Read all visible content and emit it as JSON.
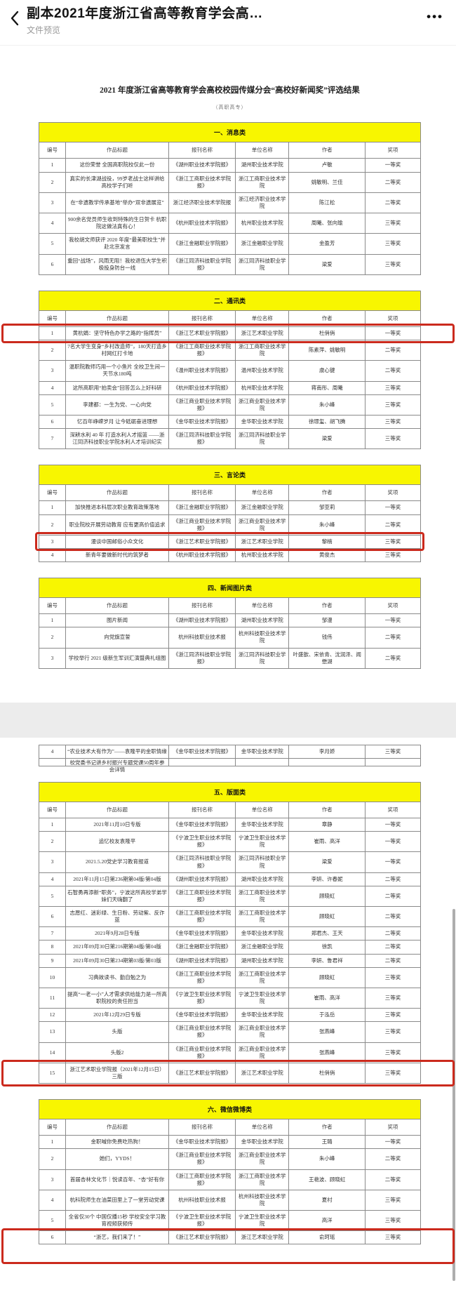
{
  "app_bar": {
    "title": "副本2021年度浙江省高等教育学会高…",
    "subtitle": "文件预览",
    "icons": {
      "back": "‹",
      "more": "•••"
    }
  },
  "colors": {
    "banner_yellow": "#f8f600",
    "highlight_red": "#cb2a1d",
    "table_border": "#8a8a8a"
  },
  "document": {
    "title": "2021 年度浙江省高等教育学会高校校园传媒分会“高校好新闻奖”评选结果",
    "subtitle": "（高职高专）",
    "columns": [
      "编号",
      "作品标题",
      "报刊名称",
      "单位名称",
      "作者",
      "奖项"
    ],
    "pages": [
      {
        "sections": [
          "msg",
          "comm",
          "opinion",
          "photo"
        ]
      },
      {
        "sections": [
          "photo_cont",
          "layout",
          "wechat"
        ]
      }
    ],
    "sections": [
      {
        "id": "msg",
        "banner": "一、消息类",
        "show_header": true,
        "rows": [
          {
            "no": "1",
            "title": "这份荣誉 全国高职院校仅此一份",
            "paper": "《湖州职业技术学院报》",
            "unit": "湖州职业技术学院",
            "author": "卢敏",
            "award": "一等奖"
          },
          {
            "no": "2",
            "title": "真实的长津湖战役，99岁老战士这样讲给高校学子们听",
            "paper": "《浙江工商职业技术学院报》",
            "unit": "浙江工商职业技术学院",
            "author": "姚敏明、兰佳",
            "award": "二等奖"
          },
          {
            "no": "3",
            "title": "在“非遗教学传承基地”举办“双非遗展览”",
            "paper": "浙江经济职业技术学院报",
            "unit": "浙江经济职业技术学院",
            "author": "陈江松",
            "award": "二等奖"
          },
          {
            "no": "4",
            "title": "900余名党员师生收到特殊的生日贺卡 杭职院这做法真有心！",
            "paper": "《杭州职业技术学院报》",
            "unit": "杭州职业技术学院",
            "author": "周曦、张向瑜",
            "award": "三等奖"
          },
          {
            "no": "5",
            "title": "我校胡文师获评 2020 年度“最美职校生”并赴北京发言",
            "paper": "《浙江金融职业学院报》",
            "unit": "浙江金融职业学院",
            "author": "金盈芳",
            "award": "三等奖"
          },
          {
            "no": "6",
            "title": "重回“战场”，风雨无阻！我校退伍大学生积极投身防台一线",
            "paper": "《浙江同济科技职业学院报》",
            "unit": "浙江同济科技职业学院",
            "author": "梁爱",
            "award": "三等奖"
          }
        ]
      },
      {
        "id": "comm",
        "banner": "二、通讯类",
        "show_header": true,
        "rows": [
          {
            "no": "1",
            "title": "黄杭娟：坚守特色办学之路的“指挥员”",
            "paper": "《浙江艺术职业学院报》",
            "unit": "浙江艺术职业学院",
            "author": "杜俏俏",
            "award": "一等奖",
            "highlight": "full"
          },
          {
            "no": "2",
            "title": "7名大学生变身“乡村改造师”，180天打造乡村网红打卡地",
            "paper": "《浙江工商职业技术学院报》",
            "unit": "浙江工商职业技术学院",
            "author": "陈素萍、姚敏明",
            "award": "二等奖"
          },
          {
            "no": "3",
            "title": "温职院教师巧用一个小鱼片 全校卫生间一天节水180吨",
            "paper": "《温州职业技术学院报》",
            "unit": "温州职业技术学院",
            "author": "虞心键",
            "award": "二等奖"
          },
          {
            "no": "4",
            "title": "这所高职用“拍卖会”回答怎么上好科研",
            "paper": "《杭州职业技术学院报》",
            "unit": "杭州职业技术学院",
            "author": "蒋南彤、周曦",
            "award": "三等奖"
          },
          {
            "no": "5",
            "title": "李建都：一生为党、一心向党",
            "paper": "《浙江商业职业技术学院报》",
            "unit": "浙江商业职业技术学院",
            "author": "朱小峰",
            "award": "三等奖"
          },
          {
            "no": "6",
            "title": "忆百年峥嵘岁月 让今砥砺奋进理想",
            "paper": "《金华职业技术学院报》",
            "unit": "金华职业技术学院",
            "author": "徐璟玺、胡飞腾",
            "award": "三等奖"
          },
          {
            "no": "7",
            "title": "深耕水利 40 年 打造水利人才摇篮 ——浙江同济科技职业学院水利人才培训纪实",
            "paper": "《浙江同济科技职业学院报》",
            "unit": "浙江同济科技职业学院",
            "author": "梁爱",
            "award": "三等奖"
          }
        ]
      },
      {
        "id": "opinion",
        "banner": "三、言论类",
        "show_header": true,
        "rows": [
          {
            "no": "1",
            "title": "加快推进本科层次职业教育政策落地",
            "paper": "《浙江金融职业学院报》",
            "unit": "浙江金融职业学院",
            "author": "邹亚莉",
            "award": "一等奖"
          },
          {
            "no": "2",
            "title": "职业院校开展劳动教育 应有更高价值追求",
            "paper": "《浙江商业职业技术学院报》",
            "unit": "浙江商业职业技术学院",
            "author": "朱小峰",
            "award": "二等奖"
          },
          {
            "no": "3",
            "title": "漫谈中国邮俗小众文化",
            "paper": "《浙江艺术职业学院报》",
            "unit": "浙江艺术职业学院",
            "author": "黎楠",
            "award": "三等奖",
            "highlight": "row"
          },
          {
            "no": "4",
            "title": "新青年要做新时代的筑梦者",
            "paper": "《杭州职业技术学院报》",
            "unit": "杭州职业技术学院",
            "author": "黄俊杰",
            "award": "三等奖"
          }
        ]
      },
      {
        "id": "photo",
        "banner": "四、新闻图片类",
        "show_header": true,
        "rows": [
          {
            "no": "1",
            "title": "图片新闻",
            "paper": "《湖州职业技术学院报》",
            "unit": "湖州职业技术学院",
            "author": "邹漫",
            "award": "一等奖"
          },
          {
            "no": "2",
            "title": "向党旗宣誓",
            "paper": "杭州科技职业技术报",
            "unit": "杭州科技职业技术学院",
            "author": "钱伟",
            "award": "二等奖"
          },
          {
            "no": "3",
            "title": "学校举行 2021 级新生军训汇演暨典礼组图",
            "paper": "《浙江同济科技职业学院报》",
            "unit": "浙江同济科技职业学院",
            "author": "叶盛歆、宋依青、沈润泽、闻懋湖",
            "award": "二等奖"
          }
        ]
      },
      {
        "id": "photo_cont",
        "banner": null,
        "show_header": false,
        "rows": [
          {
            "no": "4",
            "title": "“农业技术大有作为”——袁隆平的金职情缘",
            "paper": "《金华职业技术学院报》",
            "unit": "金华职业技术学院",
            "author": "李月娇",
            "award": "三等奖"
          },
          {
            "no": "",
            "title": "校党委书记讲乡村振兴专题党课50周年参会详情",
            "paper": "",
            "unit": "",
            "author": "",
            "award": "",
            "partial": true
          }
        ]
      },
      {
        "id": "layout",
        "banner": "五、版面类",
        "show_header": true,
        "rows": [
          {
            "no": "1",
            "title": "2021年11月10日专版",
            "paper": "《金华职业技术学院报》",
            "unit": "金华职业技术学院",
            "author": "章静",
            "award": "一等奖"
          },
          {
            "no": "2",
            "title": "追忆校友袁隆平",
            "paper": "《宁波卫生职业技术学院报》",
            "unit": "宁波卫生职业技术学院",
            "author": "崔雨、高洋",
            "award": "一等奖"
          },
          {
            "no": "3",
            "title": "2021.5.20党史学习教育报道",
            "paper": "《浙江同济科技职业学院报》",
            "unit": "浙江同济科技职业学院",
            "author": "梁爱",
            "award": "一等奖"
          },
          {
            "no": "4",
            "title": "2021年11月15日第236期第04版/第04版",
            "paper": "《湖州职业技术学院报》",
            "unit": "湖州职业技术学院",
            "author": "李妍、许春妮",
            "award": "二等奖"
          },
          {
            "no": "5",
            "title": "石智勇再添新“职务”，宁波这所高校学弟学妹们天嗨翻了",
            "paper": "《浙江工商职业技术学院报》",
            "unit": "浙江工商职业技术学院",
            "author": "顾晓虹",
            "award": "二等奖"
          },
          {
            "no": "6",
            "title": "志愿红、迷彩绿、生日粉、劳动紫、反诈蓝",
            "paper": "《浙江工商职业技术学院报》",
            "unit": "浙江工商职业技术学院",
            "author": "顾晓虹",
            "award": "二等奖"
          },
          {
            "no": "7",
            "title": "2021年9月28日专版",
            "paper": "《金华职业技术学院报》",
            "unit": "金华职业技术学院",
            "author": "郑君杰、王天",
            "award": "二等奖"
          },
          {
            "no": "8",
            "title": "2021年09月30日第216期第04版/第04版",
            "paper": "《浙江金融职业学院报》",
            "unit": "浙江金融职业学院",
            "author": "徐凯",
            "award": "二等奖"
          },
          {
            "no": "9",
            "title": "2021年09月30日第234期第03版/第03版",
            "paper": "《湖州职业技术学院报》",
            "unit": "湖州职业技术学院",
            "author": "李妍、鲁君祥",
            "award": "二等奖"
          },
          {
            "no": "10",
            "title": "习典故读书、勤自勉之为",
            "paper": "《浙江工商职业技术学院报》",
            "unit": "浙江工商职业技术学院",
            "author": "顾晓虹",
            "award": "三等奖"
          },
          {
            "no": "11",
            "title": "提高“一老一小”人才需求供给能力是一所高职院校的责任担当",
            "paper": "《宁波卫生职业技术学院报》",
            "unit": "宁波卫生职业技术学院",
            "author": "崔雨、高洋",
            "award": "三等奖"
          },
          {
            "no": "12",
            "title": "2021年12月29日专版",
            "paper": "《金华职业技术学院报》",
            "unit": "金华职业技术学院",
            "author": "于泓岳",
            "award": "三等奖"
          },
          {
            "no": "13",
            "title": "头版",
            "paper": "《浙江商业职业技术学院报》",
            "unit": "浙江商业职业技术学院",
            "author": "张燕峰",
            "award": "三等奖"
          },
          {
            "no": "14",
            "title": "头版2",
            "paper": "《浙江商业职业技术学院报》",
            "unit": "浙江商业职业技术学院",
            "author": "张燕峰",
            "award": "三等奖"
          },
          {
            "no": "15",
            "title": "浙江艺术职业学院报（2021年12月15日）三版",
            "paper": "《浙江艺术职业学院报》",
            "unit": "浙江艺术职业学院",
            "author": "杜俏俏",
            "award": "三等奖",
            "highlight": "full"
          }
        ]
      },
      {
        "id": "wechat",
        "banner": "六、微信微博类",
        "show_header": true,
        "rows": [
          {
            "no": "1",
            "title": "金职喊你免费吃热狗！",
            "paper": "《金华职业技术学院报》",
            "unit": "金华职业技术学院",
            "author": "王璐",
            "award": "一等奖"
          },
          {
            "no": "2",
            "title": "她们，YYDS！",
            "paper": "《浙江商业职业技术学院报》",
            "unit": "浙江商业职业技术学院",
            "author": "朱小峰",
            "award": "二等奖"
          },
          {
            "no": "3",
            "title": "首届杏林文化节｜悦读百年、“杏”好有你",
            "paper": "《浙江工商职业技术学院报》",
            "unit": "浙江工商职业技术学院",
            "author": "王艳波、顾晓虹",
            "award": "二等奖"
          },
          {
            "no": "4",
            "title": "杭科院师生在油菜田里上了一堂劳动党课",
            "paper": "杭州科技职业技术报",
            "unit": "杭州科技职业技术学院",
            "author": "夏村",
            "award": "三等奖"
          },
          {
            "no": "5",
            "title": "全省仅30个 中国仅播15秒 学校安全学习教育视频获频传",
            "paper": "《宁波卫生职业技术学院报》",
            "unit": "宁波卫生职业技术学院",
            "author": "高洋",
            "award": "三等奖"
          },
          {
            "no": "6",
            "title": "“浙艺，我们来了！”",
            "paper": "《浙江艺术职业学院报》",
            "unit": "浙江艺术职业学院",
            "author": "俞珂瑶",
            "award": "三等奖",
            "highlight": "full",
            "extend": 24
          }
        ]
      }
    ]
  }
}
